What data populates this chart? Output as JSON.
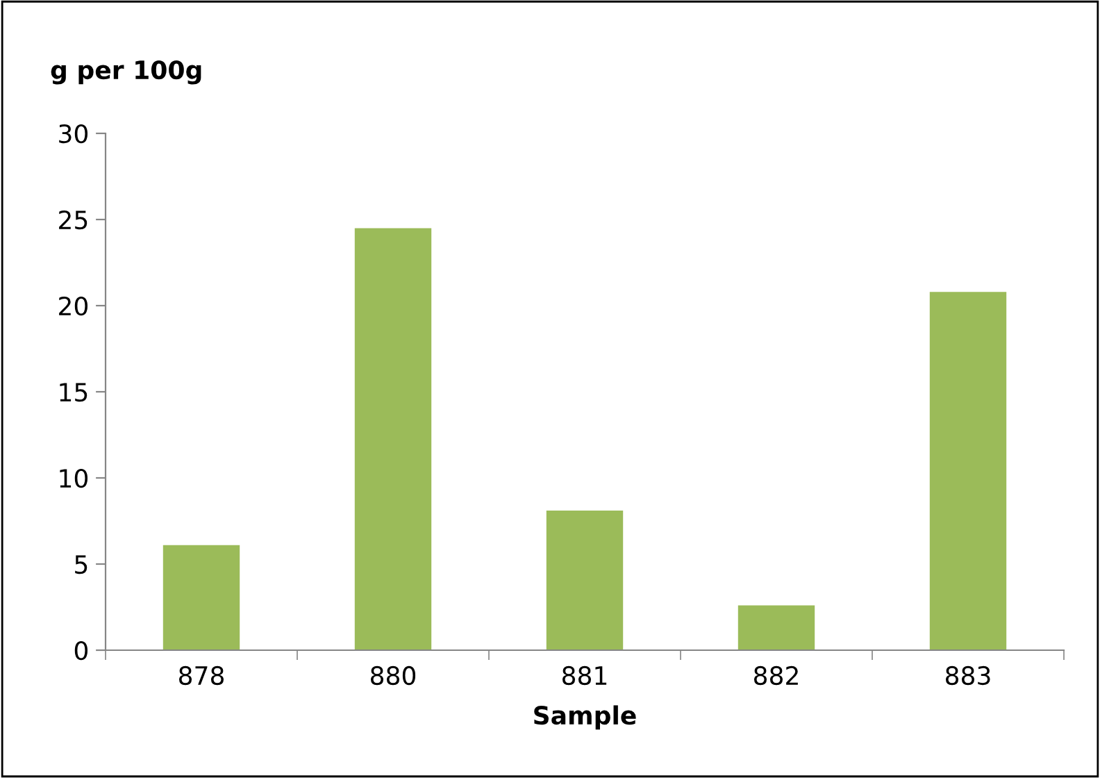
{
  "chart_data": {
    "type": "bar",
    "ylabel": "g per 100g",
    "xlabel": "Sample",
    "categories": [
      "878",
      "880",
      "881",
      "882",
      "883"
    ],
    "values": [
      6.1,
      24.5,
      8.1,
      2.6,
      20.8
    ],
    "color": "#9bbb59",
    "ylim": [
      0,
      30
    ],
    "yticks": [
      0,
      5,
      10,
      15,
      20,
      25,
      30
    ],
    "grid": false,
    "legend": false
  }
}
